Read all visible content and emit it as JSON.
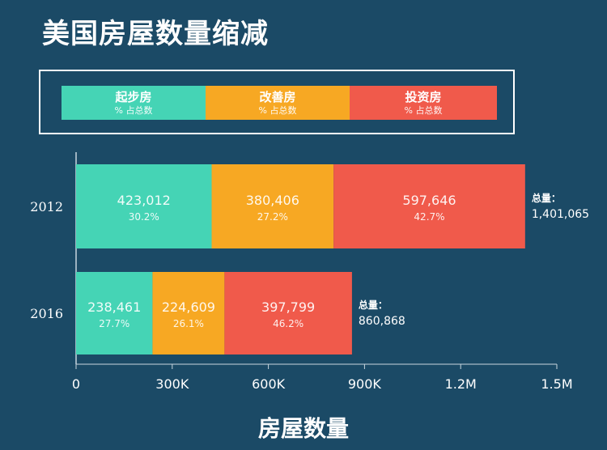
{
  "title": "美国房屋数量缩减",
  "legend": [
    {
      "name": "起步房",
      "sub": "% 占总数",
      "color": "#45d4b5"
    },
    {
      "name": "改善房",
      "sub": "%  占总数",
      "color": "#f7a823"
    },
    {
      "name": "投资房",
      "sub": "% 占总数",
      "color": "#f05a4b"
    }
  ],
  "chart_data": {
    "type": "bar",
    "orientation": "horizontal",
    "stacked": true,
    "title": "美国房屋数量缩减",
    "xlabel": "房屋数量",
    "ylabel": "",
    "xlim": [
      0,
      1500000
    ],
    "xticks": [
      0,
      300000,
      600000,
      900000,
      1200000,
      1500000
    ],
    "xtick_labels": [
      "0",
      "300K",
      "600K",
      "900K",
      "1.2M",
      "1.5M"
    ],
    "categories": [
      "2012",
      "2016"
    ],
    "series": [
      {
        "name": "起步房",
        "values": [
          423012,
          238461
        ],
        "value_labels": [
          "423,012",
          "238,461"
        ],
        "pct_labels": [
          "30.2%",
          "27.7%"
        ]
      },
      {
        "name": "改善房",
        "values": [
          380406,
          224609
        ],
        "value_labels": [
          "380,406",
          "224,609"
        ],
        "pct_labels": [
          "27.2%",
          "26.1%"
        ]
      },
      {
        "name": "投资房",
        "values": [
          597646,
          397799
        ],
        "value_labels": [
          "597,646",
          "397,799"
        ],
        "pct_labels": [
          "42.7%",
          "46.2%"
        ]
      }
    ],
    "totals": [
      {
        "label": "总量：",
        "value": "1,401,065"
      },
      {
        "label": "总量：",
        "value": "860,868"
      }
    ],
    "legend_position": "top"
  }
}
